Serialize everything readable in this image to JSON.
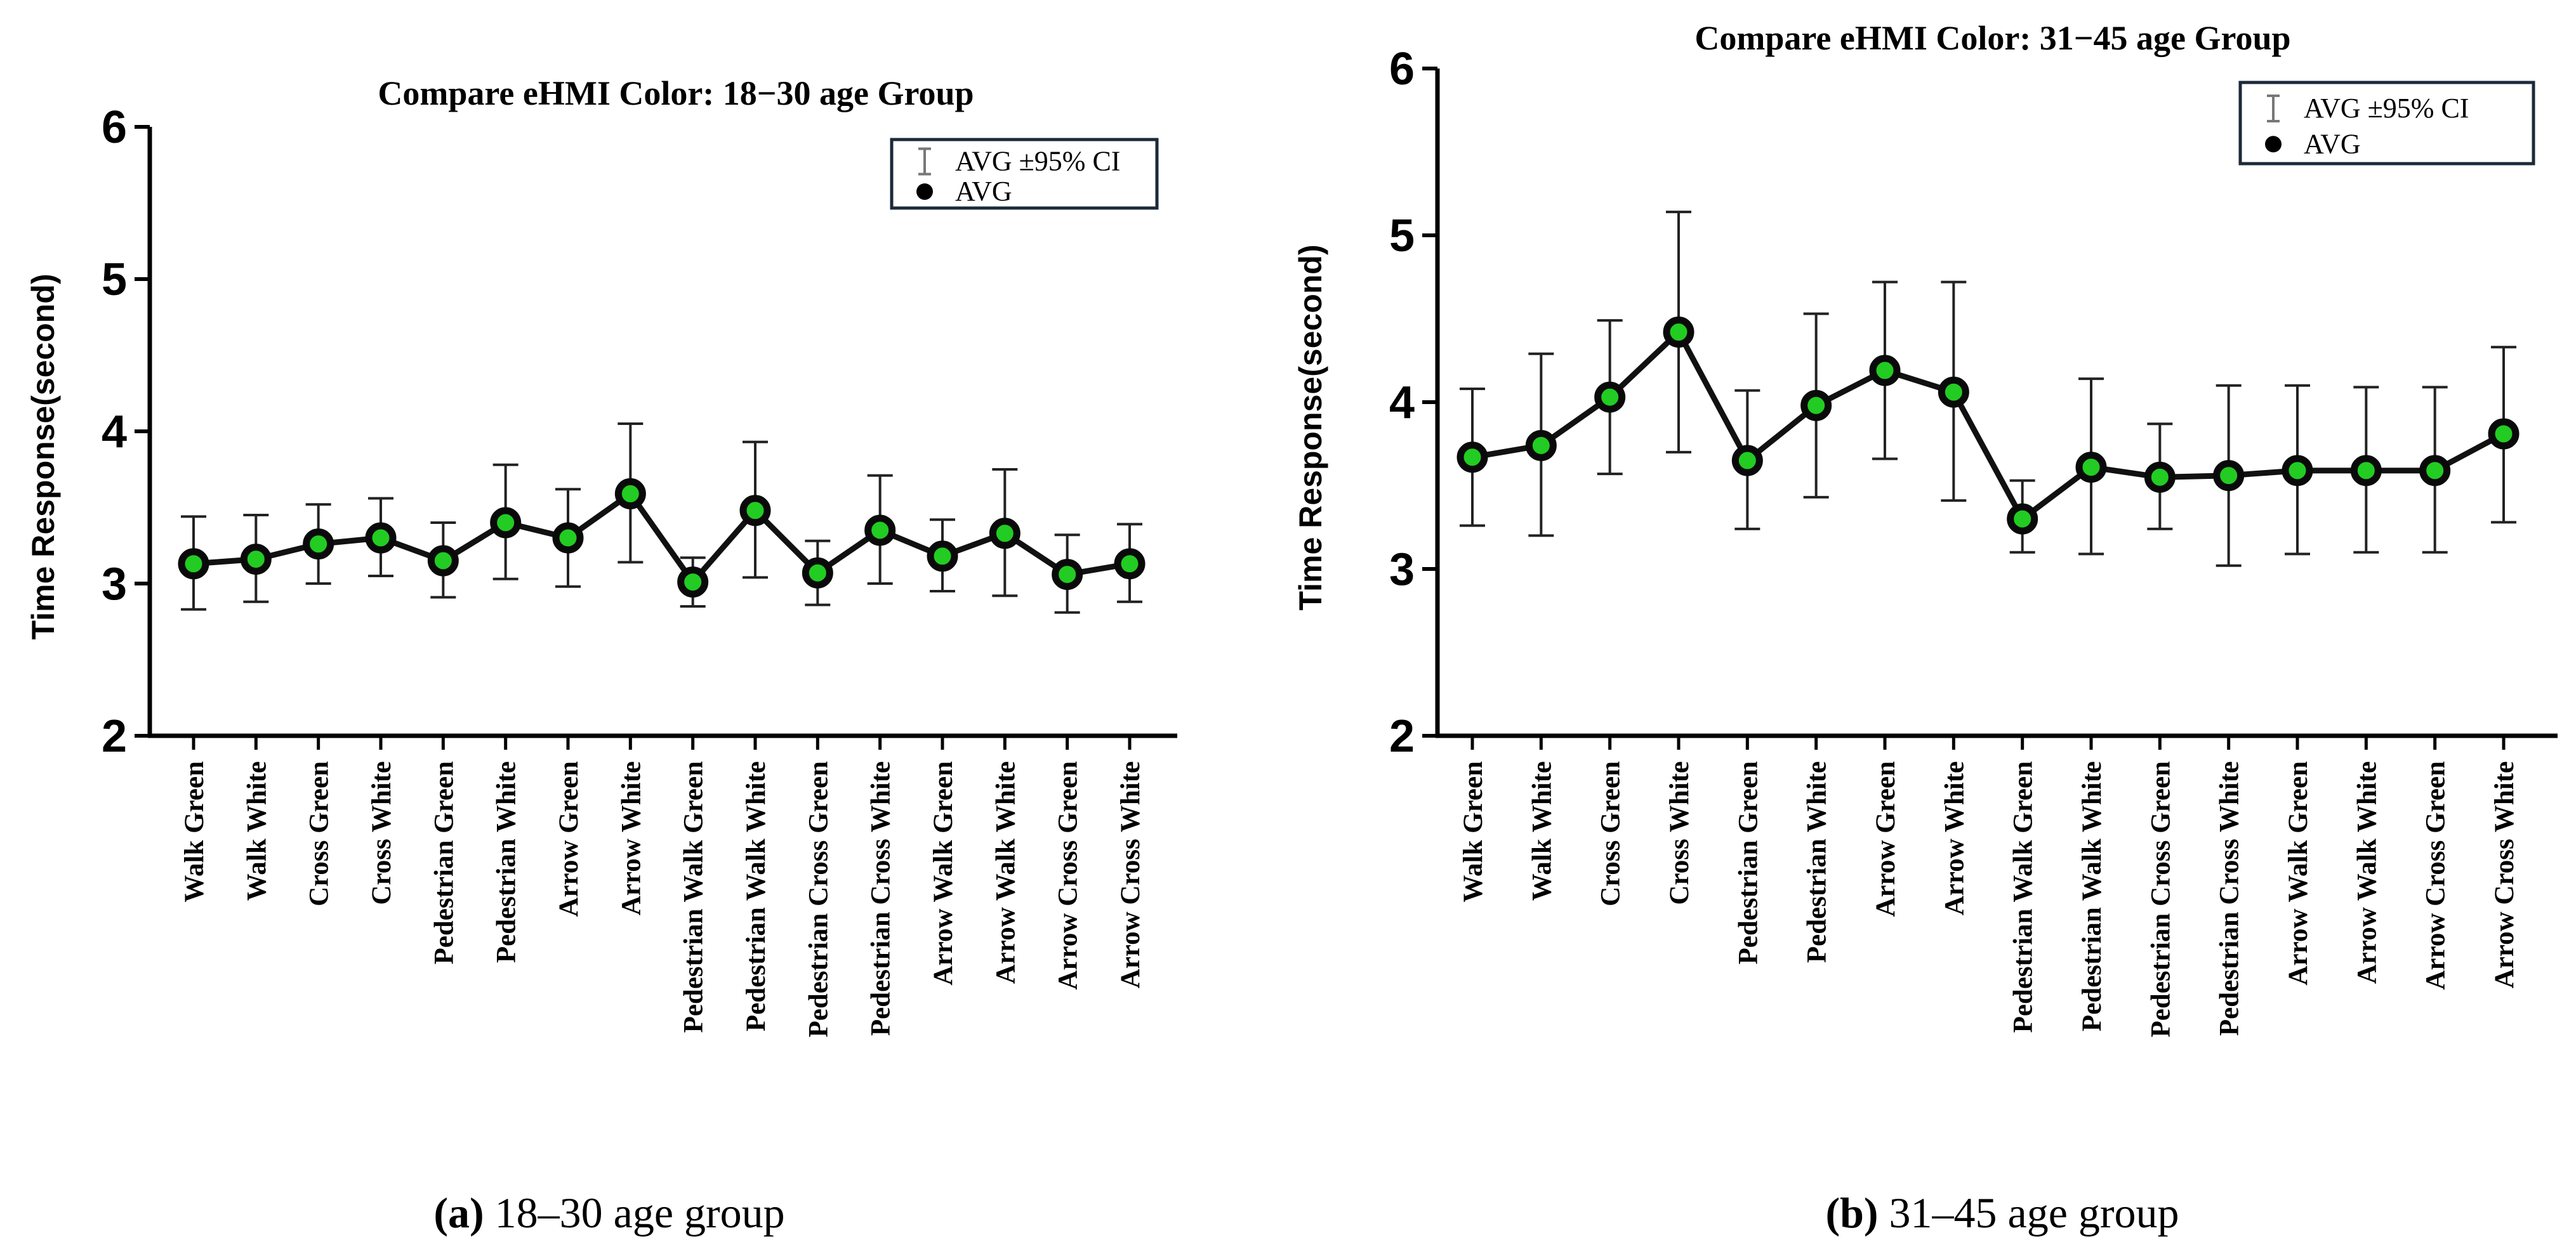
{
  "chart_data": [
    {
      "type": "line",
      "title": "Compare eHMI Color: 18−30 age Group",
      "ylabel": "Time Response(second)",
      "xlabel": "",
      "ylim": [
        2,
        6
      ],
      "yticks": [
        2,
        3,
        4,
        5,
        6
      ],
      "categories": [
        "Walk Green",
        "Walk White",
        "Cross Green",
        "Cross White",
        "Pedestrian Green",
        "Pedestrian White",
        "Arrow Green",
        "Arrow White",
        "Pedestrian Walk Green",
        "Pedestrian Walk White",
        "Pedestrian Cross Green",
        "Pedestrian Cross White",
        "Arrow Walk Green",
        "Arrow Walk White",
        "Arrow Cross Green",
        "Arrow Cross White"
      ],
      "series": [
        {
          "name": "AVG",
          "values": [
            3.13,
            3.16,
            3.26,
            3.3,
            3.15,
            3.4,
            3.3,
            3.59,
            3.01,
            3.48,
            3.07,
            3.35,
            3.18,
            3.33,
            3.06,
            3.13
          ],
          "ci_low": [
            2.83,
            2.88,
            3.0,
            3.05,
            2.91,
            3.03,
            2.98,
            3.14,
            2.85,
            3.04,
            2.86,
            3.0,
            2.95,
            2.92,
            2.81,
            2.88
          ],
          "ci_high": [
            3.44,
            3.45,
            3.52,
            3.56,
            3.4,
            3.78,
            3.62,
            4.05,
            3.17,
            3.93,
            3.28,
            3.71,
            3.42,
            3.75,
            3.32,
            3.39
          ]
        }
      ],
      "legend": {
        "position": "top-right",
        "entries": [
          "AVG ±95% CI",
          "AVG"
        ]
      },
      "caption": {
        "letter": "(a)",
        "text": " 18–30 age group"
      }
    },
    {
      "type": "line",
      "title": "Compare eHMI Color: 31−45 age Group",
      "ylabel": "Time Response(second)",
      "xlabel": "",
      "ylim": [
        2,
        6
      ],
      "yticks": [
        2,
        3,
        4,
        5,
        6
      ],
      "categories": [
        "Walk Green",
        "Walk White",
        "Cross Green",
        "Cross White",
        "Pedestrian Green",
        "Pedestrian White",
        "Arrow Green",
        "Arrow White",
        "Pedestrian Walk Green",
        "Pedestrian Walk White",
        "Pedestrian Cross Green",
        "Pedestrian Cross White",
        "Arrow Walk Green",
        "Arrow Walk White",
        "Arrow Cross Green",
        "Arrow Cross White"
      ],
      "series": [
        {
          "name": "AVG",
          "values": [
            3.67,
            3.74,
            4.03,
            4.42,
            3.65,
            3.98,
            4.19,
            4.06,
            3.3,
            3.61,
            3.55,
            3.56,
            3.59,
            3.59,
            3.59,
            3.81
          ],
          "ci_low": [
            3.26,
            3.2,
            3.57,
            3.7,
            3.24,
            3.43,
            3.66,
            3.41,
            3.1,
            3.09,
            3.24,
            3.02,
            3.09,
            3.1,
            3.1,
            3.28
          ],
          "ci_high": [
            4.08,
            4.29,
            4.49,
            5.14,
            4.07,
            4.53,
            4.72,
            4.72,
            3.53,
            4.14,
            3.87,
            4.1,
            4.1,
            4.09,
            4.09,
            4.33
          ]
        }
      ],
      "legend": {
        "position": "top-right",
        "entries": [
          "AVG ±95% CI",
          "AVG"
        ]
      },
      "caption": {
        "letter": "(b)",
        "text": " 31–45 age group"
      }
    }
  ],
  "colors": {
    "line": "#111111",
    "marker_fill": "#22cc22",
    "marker_ring": "#0a0a0a",
    "axis": "#000000",
    "legend_border": "#1b2a3a"
  }
}
